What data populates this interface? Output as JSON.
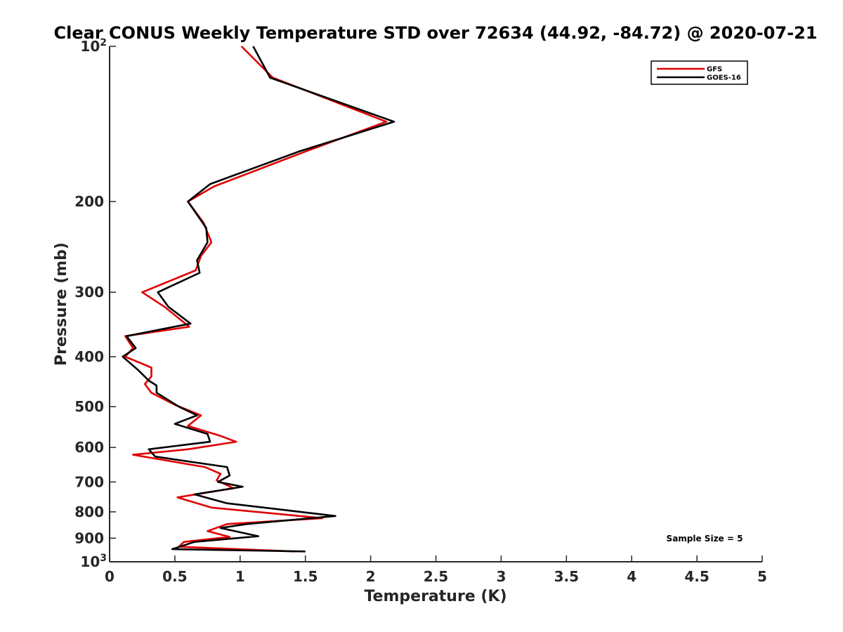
{
  "chart_data": {
    "type": "line",
    "title": "Clear CONUS Weekly Temperature STD over 72634 (44.92, -84.72) @ 2020-07-21",
    "xlabel": "Temperature (K)",
    "ylabel": "Pressure (mb)",
    "xlim": [
      0,
      5
    ],
    "ylim": [
      100,
      1000
    ],
    "y_scale": "log",
    "y_reversed": true,
    "x_ticks": [
      "0",
      "0.5",
      "1",
      "1.5",
      "2",
      "2.5",
      "3",
      "3.5",
      "4",
      "4.5",
      "5"
    ],
    "y_ticks": [
      {
        "value": 100,
        "base": "10",
        "exp": "2"
      },
      {
        "value": 200,
        "label": "200"
      },
      {
        "value": 300,
        "label": "300"
      },
      {
        "value": 400,
        "label": "400"
      },
      {
        "value": 500,
        "label": "500"
      },
      {
        "value": 600,
        "label": "600"
      },
      {
        "value": 700,
        "label": "700"
      },
      {
        "value": 800,
        "label": "800"
      },
      {
        "value": 900,
        "label": "900"
      },
      {
        "value": 1000,
        "base": "10",
        "exp": "3"
      }
    ],
    "grid": false,
    "legend_position": "top-right",
    "annotation": "Sample Size = 5",
    "series": [
      {
        "name": "GFS",
        "color": "#e00000",
        "points": [
          [
            1.01,
            100
          ],
          [
            1.25,
            115
          ],
          [
            2.12,
            140
          ],
          [
            1.5,
            160
          ],
          [
            0.8,
            187
          ],
          [
            0.6,
            200
          ],
          [
            0.72,
            220
          ],
          [
            0.78,
            240
          ],
          [
            0.7,
            255
          ],
          [
            0.66,
            272
          ],
          [
            0.25,
            300
          ],
          [
            0.42,
            320
          ],
          [
            0.61,
            350
          ],
          [
            0.12,
            365
          ],
          [
            0.18,
            385
          ],
          [
            0.12,
            400
          ],
          [
            0.32,
            420
          ],
          [
            0.32,
            437
          ],
          [
            0.27,
            452
          ],
          [
            0.32,
            470
          ],
          [
            0.5,
            496
          ],
          [
            0.7,
            520
          ],
          [
            0.6,
            545
          ],
          [
            0.85,
            570
          ],
          [
            0.97,
            585
          ],
          [
            0.6,
            605
          ],
          [
            0.18,
            620
          ],
          [
            0.73,
            655
          ],
          [
            0.85,
            675
          ],
          [
            0.82,
            695
          ],
          [
            0.95,
            720
          ],
          [
            0.52,
            750
          ],
          [
            0.78,
            785
          ],
          [
            1.63,
            823
          ],
          [
            0.9,
            845
          ],
          [
            0.75,
            872
          ],
          [
            0.92,
            895
          ],
          [
            0.57,
            915
          ],
          [
            0.53,
            935
          ],
          [
            1.42,
            955
          ]
        ]
      },
      {
        "name": "GOES-16",
        "color": "#000000",
        "points": [
          [
            1.1,
            100
          ],
          [
            1.23,
            115
          ],
          [
            2.18,
            140
          ],
          [
            1.45,
            160
          ],
          [
            0.77,
            185
          ],
          [
            0.6,
            200
          ],
          [
            0.74,
            225
          ],
          [
            0.75,
            240
          ],
          [
            0.67,
            260
          ],
          [
            0.69,
            275
          ],
          [
            0.37,
            300
          ],
          [
            0.45,
            320
          ],
          [
            0.62,
            345
          ],
          [
            0.13,
            365
          ],
          [
            0.2,
            385
          ],
          [
            0.1,
            400
          ],
          [
            0.22,
            425
          ],
          [
            0.3,
            445
          ],
          [
            0.36,
            455
          ],
          [
            0.36,
            470
          ],
          [
            0.53,
            500
          ],
          [
            0.67,
            520
          ],
          [
            0.5,
            540
          ],
          [
            0.75,
            565
          ],
          [
            0.77,
            585
          ],
          [
            0.3,
            605
          ],
          [
            0.35,
            625
          ],
          [
            0.9,
            655
          ],
          [
            0.92,
            680
          ],
          [
            0.83,
            700
          ],
          [
            1.02,
            715
          ],
          [
            0.65,
            740
          ],
          [
            0.9,
            770
          ],
          [
            1.73,
            815
          ],
          [
            1.05,
            845
          ],
          [
            0.85,
            860
          ],
          [
            1.14,
            892
          ],
          [
            0.65,
            915
          ],
          [
            0.48,
            945
          ],
          [
            1.5,
            955
          ]
        ]
      }
    ]
  }
}
